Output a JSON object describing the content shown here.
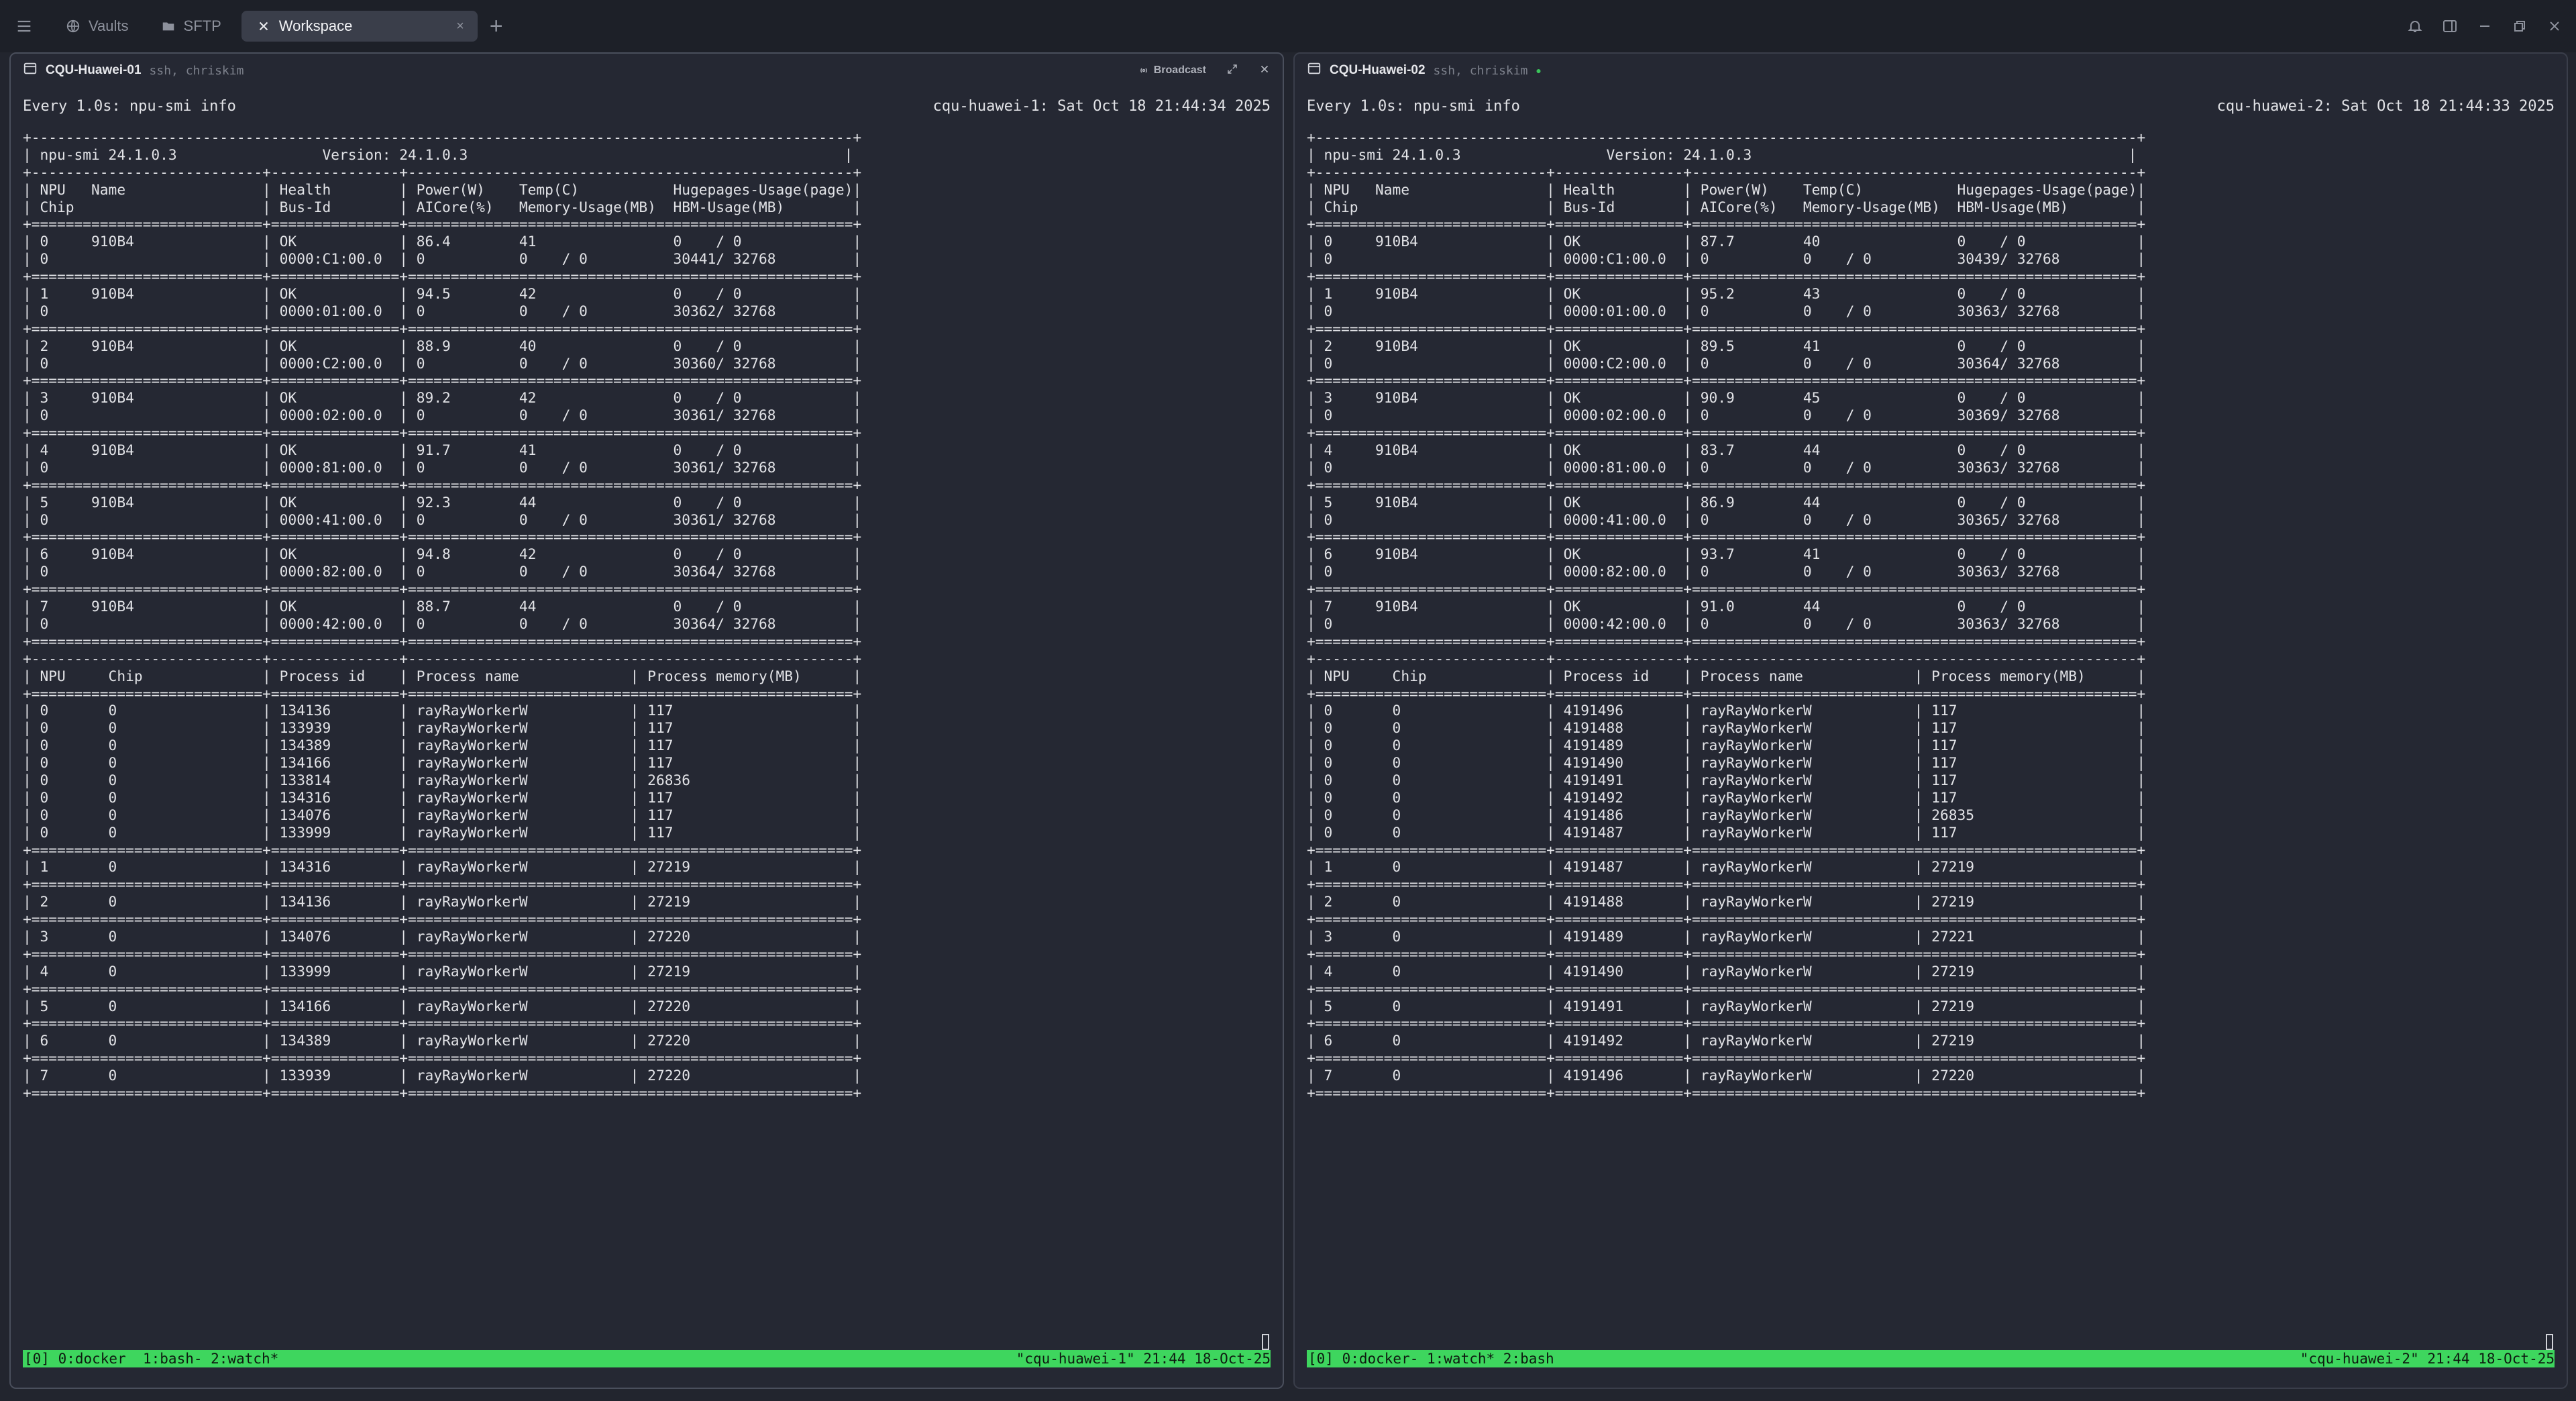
{
  "tabs": [
    {
      "label": "Vaults",
      "icon": "globe-icon"
    },
    {
      "label": "SFTP",
      "icon": "folder-icon"
    },
    {
      "label": "Workspace",
      "icon": "close-icon"
    }
  ],
  "colors": {
    "status_bar": "#3ed65e",
    "background": "#22252e",
    "active_tab": "#3a3e4a"
  },
  "panes": [
    {
      "title": "CQU-Huawei-01",
      "subtitle": "ssh, chriskim",
      "broadcast_label": "Broadcast",
      "watch_left": "Every 1.0s: npu-smi info",
      "watch_right": "cqu-huawei-1: Sat Oct 18 21:44:34 2025",
      "status_left": "[0] 0:docker  1:bash- 2:watch*",
      "status_right": "\"cqu-huawei-1\" 21:44 18-Oct-25",
      "lines": [
        "+------------------------------------------------------------------------------------------------+",
        "| npu-smi 24.1.0.3                 Version: 24.1.0.3                                            |",
        "+---------------------------+---------------+----------------------------------------------------+",
        "| NPU   Name                | Health        | Power(W)    Temp(C)           Hugepages-Usage(page)|",
        "| Chip                      | Bus-Id        | AICore(%)   Memory-Usage(MB)  HBM-Usage(MB)        |",
        "+===========================+===============+====================================================+",
        "| 0     910B4               | OK            | 86.4        41                0    / 0             |",
        "| 0                         | 0000:C1:00.0  | 0           0    / 0          30441/ 32768         |",
        "+===========================+===============+====================================================+",
        "| 1     910B4               | OK            | 94.5        42                0    / 0             |",
        "| 0                         | 0000:01:00.0  | 0           0    / 0          30362/ 32768         |",
        "+===========================+===============+====================================================+",
        "| 2     910B4               | OK            | 88.9        40                0    / 0             |",
        "| 0                         | 0000:C2:00.0  | 0           0    / 0          30360/ 32768         |",
        "+===========================+===============+====================================================+",
        "| 3     910B4               | OK            | 89.2        42                0    / 0             |",
        "| 0                         | 0000:02:00.0  | 0           0    / 0          30361/ 32768         |",
        "+===========================+===============+====================================================+",
        "| 4     910B4               | OK            | 91.7        41                0    / 0             |",
        "| 0                         | 0000:81:00.0  | 0           0    / 0          30361/ 32768         |",
        "+===========================+===============+====================================================+",
        "| 5     910B4               | OK            | 92.3        44                0    / 0             |",
        "| 0                         | 0000:41:00.0  | 0           0    / 0          30361/ 32768         |",
        "+===========================+===============+====================================================+",
        "| 6     910B4               | OK            | 94.8        42                0    / 0             |",
        "| 0                         | 0000:82:00.0  | 0           0    / 0          30364/ 32768         |",
        "+===========================+===============+====================================================+",
        "| 7     910B4               | OK            | 88.7        44                0    / 0             |",
        "| 0                         | 0000:42:00.0  | 0           0    / 0          30364/ 32768         |",
        "+===========================+===============+====================================================+",
        "+---------------------------+---------------+----------------------------------------------------+",
        "| NPU     Chip              | Process id    | Process name             | Process memory(MB)      |",
        "+===========================+===============+====================================================+",
        "| 0       0                 | 134136        | rayRayWorkerW            | 117                     |",
        "| 0       0                 | 133939        | rayRayWorkerW            | 117                     |",
        "| 0       0                 | 134389        | rayRayWorkerW            | 117                     |",
        "| 0       0                 | 134166        | rayRayWorkerW            | 117                     |",
        "| 0       0                 | 133814        | rayRayWorkerW            | 26836                   |",
        "| 0       0                 | 134316        | rayRayWorkerW            | 117                     |",
        "| 0       0                 | 134076        | rayRayWorkerW            | 117                     |",
        "| 0       0                 | 133999        | rayRayWorkerW            | 117                     |",
        "+===========================+===============+====================================================+",
        "| 1       0                 | 134316        | rayRayWorkerW            | 27219                   |",
        "+===========================+===============+====================================================+",
        "| 2       0                 | 134136        | rayRayWorkerW            | 27219                   |",
        "+===========================+===============+====================================================+",
        "| 3       0                 | 134076        | rayRayWorkerW            | 27220                   |",
        "+===========================+===============+====================================================+",
        "| 4       0                 | 133999        | rayRayWorkerW            | 27219                   |",
        "+===========================+===============+====================================================+",
        "| 5       0                 | 134166        | rayRayWorkerW            | 27220                   |",
        "+===========================+===============+====================================================+",
        "| 6       0                 | 134389        | rayRayWorkerW            | 27220                   |",
        "+===========================+===============+====================================================+",
        "| 7       0                 | 133939        | rayRayWorkerW            | 27220                   |",
        "+===========================+===============+====================================================+"
      ]
    },
    {
      "title": "CQU-Huawei-02",
      "subtitle": "ssh, chriskim",
      "watch_left": "Every 1.0s: npu-smi info",
      "watch_right": "cqu-huawei-2: Sat Oct 18 21:44:33 2025",
      "status_left": "[0] 0:docker- 1:watch* 2:bash",
      "status_right": "\"cqu-huawei-2\" 21:44 18-Oct-25",
      "lines": [
        "+------------------------------------------------------------------------------------------------+",
        "| npu-smi 24.1.0.3                 Version: 24.1.0.3                                            |",
        "+---------------------------+---------------+----------------------------------------------------+",
        "| NPU   Name                | Health        | Power(W)    Temp(C)           Hugepages-Usage(page)|",
        "| Chip                      | Bus-Id        | AICore(%)   Memory-Usage(MB)  HBM-Usage(MB)        |",
        "+===========================+===============+====================================================+",
        "| 0     910B4               | OK            | 87.7        40                0    / 0             |",
        "| 0                         | 0000:C1:00.0  | 0           0    / 0          30439/ 32768         |",
        "+===========================+===============+====================================================+",
        "| 1     910B4               | OK            | 95.2        43                0    / 0             |",
        "| 0                         | 0000:01:00.0  | 0           0    / 0          30363/ 32768         |",
        "+===========================+===============+====================================================+",
        "| 2     910B4               | OK            | 89.5        41                0    / 0             |",
        "| 0                         | 0000:C2:00.0  | 0           0    / 0          30364/ 32768         |",
        "+===========================+===============+====================================================+",
        "| 3     910B4               | OK            | 90.9        45                0    / 0             |",
        "| 0                         | 0000:02:00.0  | 0           0    / 0          30369/ 32768         |",
        "+===========================+===============+====================================================+",
        "| 4     910B4               | OK            | 83.7        44                0    / 0             |",
        "| 0                         | 0000:81:00.0  | 0           0    / 0          30363/ 32768         |",
        "+===========================+===============+====================================================+",
        "| 5     910B4               | OK            | 86.9        44                0    / 0             |",
        "| 0                         | 0000:41:00.0  | 0           0    / 0          30365/ 32768         |",
        "+===========================+===============+====================================================+",
        "| 6     910B4               | OK            | 93.7        41                0    / 0             |",
        "| 0                         | 0000:82:00.0  | 0           0    / 0          30363/ 32768         |",
        "+===========================+===============+====================================================+",
        "| 7     910B4               | OK            | 91.0        44                0    / 0             |",
        "| 0                         | 0000:42:00.0  | 0           0    / 0          30363/ 32768         |",
        "+===========================+===============+====================================================+",
        "+---------------------------+---------------+----------------------------------------------------+",
        "| NPU     Chip              | Process id    | Process name             | Process memory(MB)      |",
        "+===========================+===============+====================================================+",
        "| 0       0                 | 4191496       | rayRayWorkerW            | 117                     |",
        "| 0       0                 | 4191488       | rayRayWorkerW            | 117                     |",
        "| 0       0                 | 4191489       | rayRayWorkerW            | 117                     |",
        "| 0       0                 | 4191490       | rayRayWorkerW            | 117                     |",
        "| 0       0                 | 4191491       | rayRayWorkerW            | 117                     |",
        "| 0       0                 | 4191492       | rayRayWorkerW            | 117                     |",
        "| 0       0                 | 4191486       | rayRayWorkerW            | 26835                   |",
        "| 0       0                 | 4191487       | rayRayWorkerW            | 117                     |",
        "+===========================+===============+====================================================+",
        "| 1       0                 | 4191487       | rayRayWorkerW            | 27219                   |",
        "+===========================+===============+====================================================+",
        "| 2       0                 | 4191488       | rayRayWorkerW            | 27219                   |",
        "+===========================+===============+====================================================+",
        "| 3       0                 | 4191489       | rayRayWorkerW            | 27221                   |",
        "+===========================+===============+====================================================+",
        "| 4       0                 | 4191490       | rayRayWorkerW            | 27219                   |",
        "+===========================+===============+====================================================+",
        "| 5       0                 | 4191491       | rayRayWorkerW            | 27219                   |",
        "+===========================+===============+====================================================+",
        "| 6       0                 | 4191492       | rayRayWorkerW            | 27219                   |",
        "+===========================+===============+====================================================+",
        "| 7       0                 | 4191496       | rayRayWorkerW            | 27220                   |",
        "+===========================+===============+====================================================+"
      ]
    }
  ]
}
